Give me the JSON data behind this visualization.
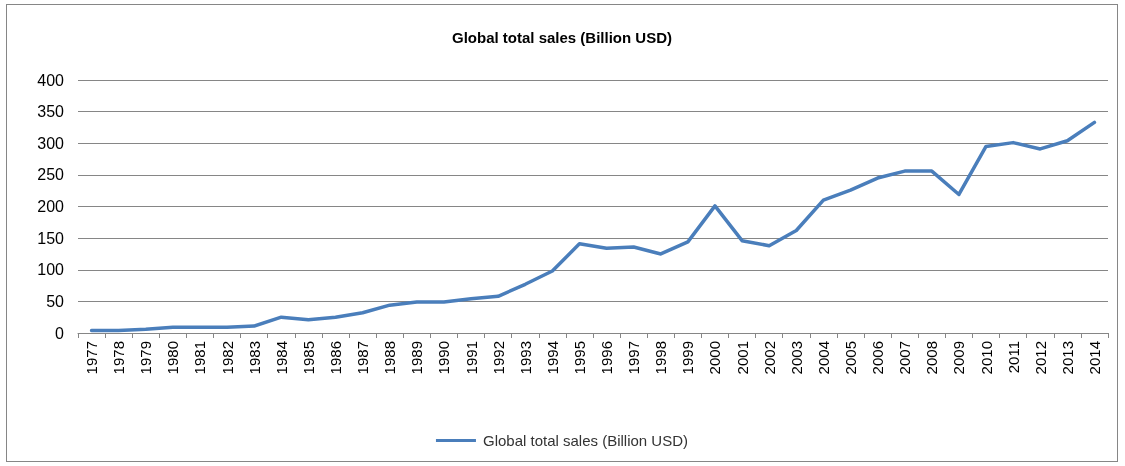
{
  "chart_data": {
    "type": "line",
    "title": "Global total sales (Billion USD)",
    "categories": [
      "1977",
      "1978",
      "1979",
      "1980",
      "1981",
      "1982",
      "1983",
      "1984",
      "1985",
      "1986",
      "1987",
      "1988",
      "1989",
      "1990",
      "1991",
      "1992",
      "1993",
      "1994",
      "1995",
      "1996",
      "1997",
      "1998",
      "1999",
      "2000",
      "2001",
      "2002",
      "2003",
      "2004",
      "2005",
      "2006",
      "2007",
      "2008",
      "2009",
      "2010",
      "2011",
      "2012",
      "2013",
      "2014"
    ],
    "series": [
      {
        "name": "Global total sales (Billion USD)",
        "color": "#4a7ebb",
        "values": [
          4,
          4,
          6,
          9,
          9,
          9,
          11,
          25,
          21,
          25,
          32,
          44,
          49,
          49,
          54,
          58,
          77,
          98,
          141,
          134,
          136,
          125,
          144,
          201,
          146,
          138,
          162,
          210,
          226,
          245,
          256,
          256,
          219,
          295,
          301,
          291,
          304,
          333
        ]
      }
    ],
    "ylim": [
      0,
      400
    ],
    "yticks": [
      0,
      50,
      100,
      150,
      200,
      250,
      300,
      350,
      400
    ],
    "grid": "y",
    "legend": "bottom",
    "marker": "none",
    "line_style": "solid"
  }
}
